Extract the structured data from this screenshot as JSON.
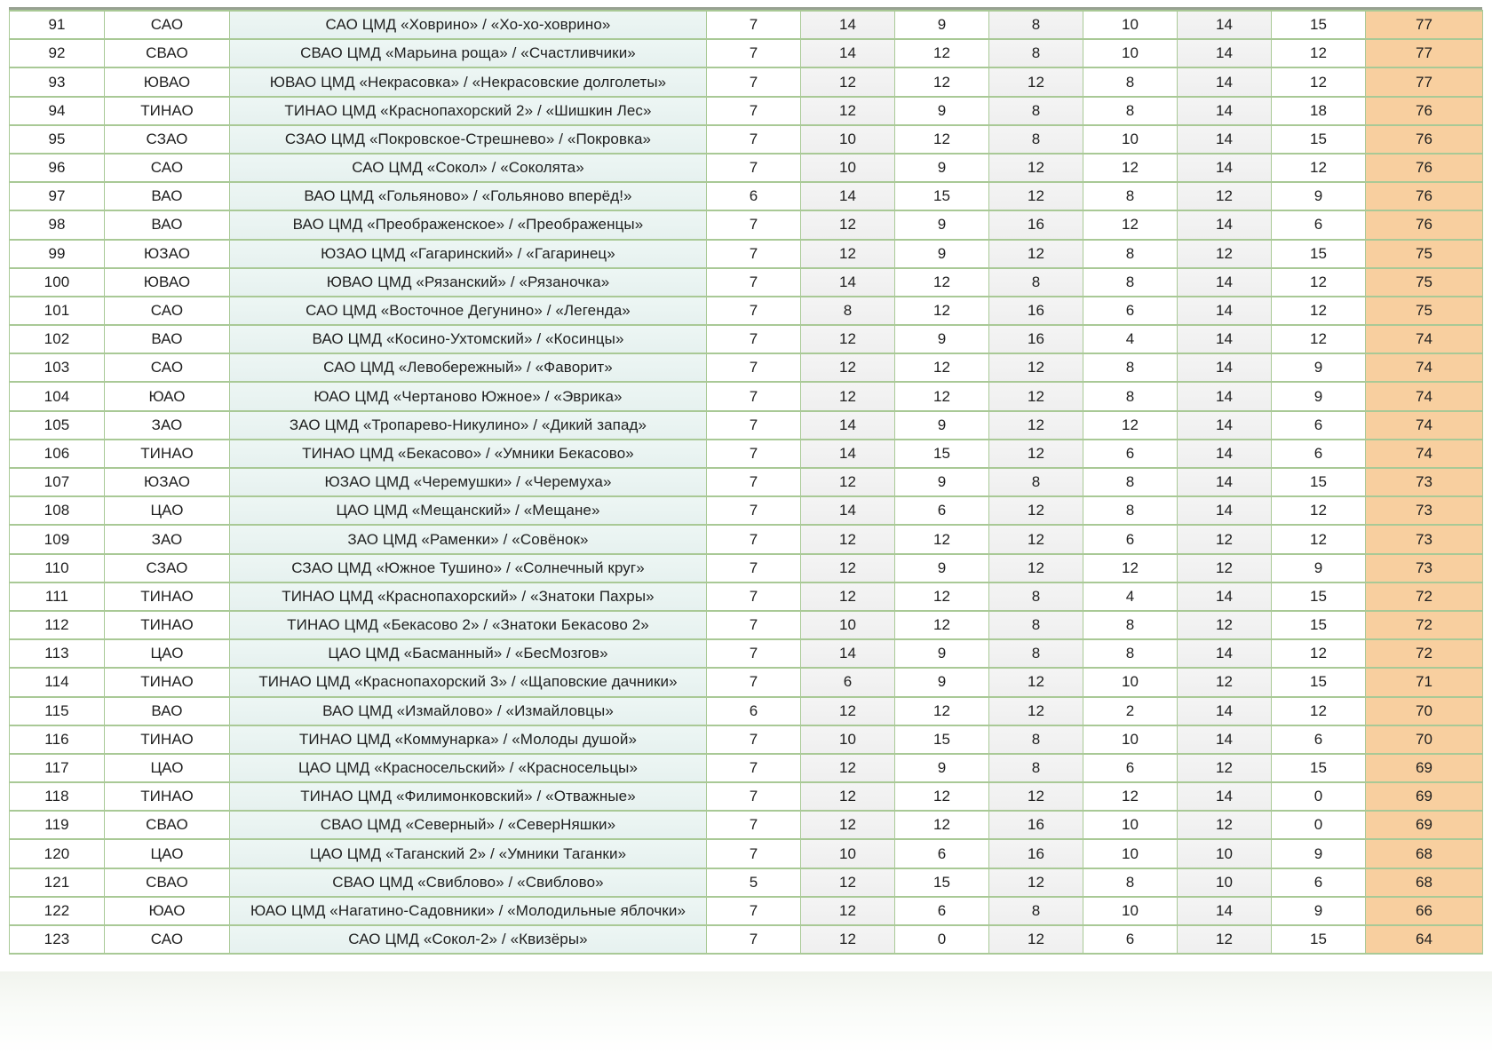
{
  "colors": {
    "border_green": "#a9c996",
    "name_column_bg": "#e8f2f0",
    "alt_column_bg": "#f2f2f2",
    "total_column_bg": "#f8cf9f",
    "text": "#1f1f1f"
  },
  "table": {
    "rows": [
      {
        "rank": "91",
        "district": "САО",
        "name": "САО ЦМД «Ховрино» / «Хо-хо-ховрино»",
        "scores": [
          "7",
          "14",
          "9",
          "8",
          "10",
          "14",
          "15"
        ],
        "total": "77"
      },
      {
        "rank": "92",
        "district": "СВАО",
        "name": "СВАО ЦМД «Марьина роща» / «Счастливчики»",
        "scores": [
          "7",
          "14",
          "12",
          "8",
          "10",
          "14",
          "12"
        ],
        "total": "77"
      },
      {
        "rank": "93",
        "district": "ЮВАО",
        "name": "ЮВАО ЦМД «Некрасовка» / «Некрасовские долголеты»",
        "scores": [
          "7",
          "12",
          "12",
          "12",
          "8",
          "14",
          "12"
        ],
        "total": "77"
      },
      {
        "rank": "94",
        "district": "ТИНАО",
        "name": "ТИНАО ЦМД «Краснопахорский 2» / «Шишкин Лес»",
        "scores": [
          "7",
          "12",
          "9",
          "8",
          "8",
          "14",
          "18"
        ],
        "total": "76"
      },
      {
        "rank": "95",
        "district": "СЗАО",
        "name": "СЗАО ЦМД «Покровское-Стрешнево» / «Покровка»",
        "scores": [
          "7",
          "10",
          "12",
          "8",
          "10",
          "14",
          "15"
        ],
        "total": "76"
      },
      {
        "rank": "96",
        "district": "САО",
        "name": "САО ЦМД «Сокол» / «Соколята»",
        "scores": [
          "7",
          "10",
          "9",
          "12",
          "12",
          "14",
          "12"
        ],
        "total": "76"
      },
      {
        "rank": "97",
        "district": "ВАО",
        "name": "ВАО ЦМД «Гольяново» / «Гольяново вперёд!»",
        "scores": [
          "6",
          "14",
          "15",
          "12",
          "8",
          "12",
          "9"
        ],
        "total": "76"
      },
      {
        "rank": "98",
        "district": "ВАО",
        "name": "ВАО ЦМД «Преображенское» / «Преображенцы»",
        "scores": [
          "7",
          "12",
          "9",
          "16",
          "12",
          "14",
          "6"
        ],
        "total": "76"
      },
      {
        "rank": "99",
        "district": "ЮЗАО",
        "name": "ЮЗАО ЦМД «Гагаринский» / «Гагаринец»",
        "scores": [
          "7",
          "12",
          "9",
          "12",
          "8",
          "12",
          "15"
        ],
        "total": "75"
      },
      {
        "rank": "100",
        "district": "ЮВАО",
        "name": "ЮВАО ЦМД «Рязанский» / «Рязаночка»",
        "scores": [
          "7",
          "14",
          "12",
          "8",
          "8",
          "14",
          "12"
        ],
        "total": "75"
      },
      {
        "rank": "101",
        "district": "САО",
        "name": "САО ЦМД «Восточное Дегунино» / «Легенда»",
        "scores": [
          "7",
          "8",
          "12",
          "16",
          "6",
          "14",
          "12"
        ],
        "total": "75"
      },
      {
        "rank": "102",
        "district": "ВАО",
        "name": "ВАО ЦМД «Косино-Ухтомский» / «Косинцы»",
        "scores": [
          "7",
          "12",
          "9",
          "16",
          "4",
          "14",
          "12"
        ],
        "total": "74"
      },
      {
        "rank": "103",
        "district": "САО",
        "name": "САО ЦМД «Левобережный» / «Фаворит»",
        "scores": [
          "7",
          "12",
          "12",
          "12",
          "8",
          "14",
          "9"
        ],
        "total": "74"
      },
      {
        "rank": "104",
        "district": "ЮАО",
        "name": "ЮАО ЦМД «Чертаново Южное» / «Эврика»",
        "scores": [
          "7",
          "12",
          "12",
          "12",
          "8",
          "14",
          "9"
        ],
        "total": "74"
      },
      {
        "rank": "105",
        "district": "ЗАО",
        "name": "ЗАО ЦМД «Тропарево-Никулино» / «Дикий запад»",
        "scores": [
          "7",
          "14",
          "9",
          "12",
          "12",
          "14",
          "6"
        ],
        "total": "74"
      },
      {
        "rank": "106",
        "district": "ТИНАО",
        "name": "ТИНАО ЦМД «Бекасово» / «Умники Бекасово»",
        "scores": [
          "7",
          "14",
          "15",
          "12",
          "6",
          "14",
          "6"
        ],
        "total": "74"
      },
      {
        "rank": "107",
        "district": "ЮЗАО",
        "name": "ЮЗАО ЦМД «Черемушки» / «Черемуха»",
        "scores": [
          "7",
          "12",
          "9",
          "8",
          "8",
          "14",
          "15"
        ],
        "total": "73"
      },
      {
        "rank": "108",
        "district": "ЦАО",
        "name": "ЦАО ЦМД «Мещанский» / «Мещане»",
        "scores": [
          "7",
          "14",
          "6",
          "12",
          "8",
          "14",
          "12"
        ],
        "total": "73"
      },
      {
        "rank": "109",
        "district": "ЗАО",
        "name": "ЗАО ЦМД «Раменки» / «Совёнок»",
        "scores": [
          "7",
          "12",
          "12",
          "12",
          "6",
          "12",
          "12"
        ],
        "total": "73"
      },
      {
        "rank": "110",
        "district": "СЗАО",
        "name": "СЗАО ЦМД «Южное Тушино» / «Солнечный круг»",
        "scores": [
          "7",
          "12",
          "9",
          "12",
          "12",
          "12",
          "9"
        ],
        "total": "73"
      },
      {
        "rank": "111",
        "district": "ТИНАО",
        "name": "ТИНАО ЦМД «Краснопахорский» / «Знатоки Пахры»",
        "scores": [
          "7",
          "12",
          "12",
          "8",
          "4",
          "14",
          "15"
        ],
        "total": "72"
      },
      {
        "rank": "112",
        "district": "ТИНАО",
        "name": "ТИНАО ЦМД «Бекасово 2» / «Знатоки Бекасово 2»",
        "scores": [
          "7",
          "10",
          "12",
          "8",
          "8",
          "12",
          "15"
        ],
        "total": "72"
      },
      {
        "rank": "113",
        "district": "ЦАО",
        "name": "ЦАО ЦМД «Басманный» / «БесМозгов»",
        "scores": [
          "7",
          "14",
          "9",
          "8",
          "8",
          "14",
          "12"
        ],
        "total": "72"
      },
      {
        "rank": "114",
        "district": "ТИНАО",
        "name": "ТИНАО ЦМД «Краснопахорский 3» / «Щаповские дачники»",
        "scores": [
          "7",
          "6",
          "9",
          "12",
          "10",
          "12",
          "15"
        ],
        "total": "71"
      },
      {
        "rank": "115",
        "district": "ВАО",
        "name": "ВАО ЦМД «Измайлово» / «Измайловцы»",
        "scores": [
          "6",
          "12",
          "12",
          "12",
          "2",
          "14",
          "12"
        ],
        "total": "70"
      },
      {
        "rank": "116",
        "district": "ТИНАО",
        "name": "ТИНАО ЦМД «Коммунарка» / «Молоды душой»",
        "scores": [
          "7",
          "10",
          "15",
          "8",
          "10",
          "14",
          "6"
        ],
        "total": "70"
      },
      {
        "rank": "117",
        "district": "ЦАО",
        "name": "ЦАО ЦМД «Красносельский» / «Красносельцы»",
        "scores": [
          "7",
          "12",
          "9",
          "8",
          "6",
          "12",
          "15"
        ],
        "total": "69"
      },
      {
        "rank": "118",
        "district": "ТИНАО",
        "name": "ТИНАО ЦМД «Филимонковский» / «Отважные»",
        "scores": [
          "7",
          "12",
          "12",
          "12",
          "12",
          "14",
          "0"
        ],
        "total": "69"
      },
      {
        "rank": "119",
        "district": "СВАО",
        "name": "СВАО ЦМД «Северный» / «СеверНяшки»",
        "scores": [
          "7",
          "12",
          "12",
          "16",
          "10",
          "12",
          "0"
        ],
        "total": "69"
      },
      {
        "rank": "120",
        "district": "ЦАО",
        "name": "ЦАО ЦМД «Таганский 2» / «Умники Таганки»",
        "scores": [
          "7",
          "10",
          "6",
          "16",
          "10",
          "10",
          "9"
        ],
        "total": "68"
      },
      {
        "rank": "121",
        "district": "СВАО",
        "name": "СВАО ЦМД «Свиблово» / «Свиблово»",
        "scores": [
          "5",
          "12",
          "15",
          "12",
          "8",
          "10",
          "6"
        ],
        "total": "68"
      },
      {
        "rank": "122",
        "district": "ЮАО",
        "name": "ЮАО ЦМД «Нагатино-Садовники» / «Молодильные яблочки»",
        "scores": [
          "7",
          "12",
          "6",
          "8",
          "10",
          "14",
          "9"
        ],
        "total": "66"
      },
      {
        "rank": "123",
        "district": "САО",
        "name": "САО ЦМД «Сокол-2» / «Квизёры»",
        "scores": [
          "7",
          "12",
          "0",
          "12",
          "6",
          "12",
          "15"
        ],
        "total": "64"
      }
    ]
  }
}
